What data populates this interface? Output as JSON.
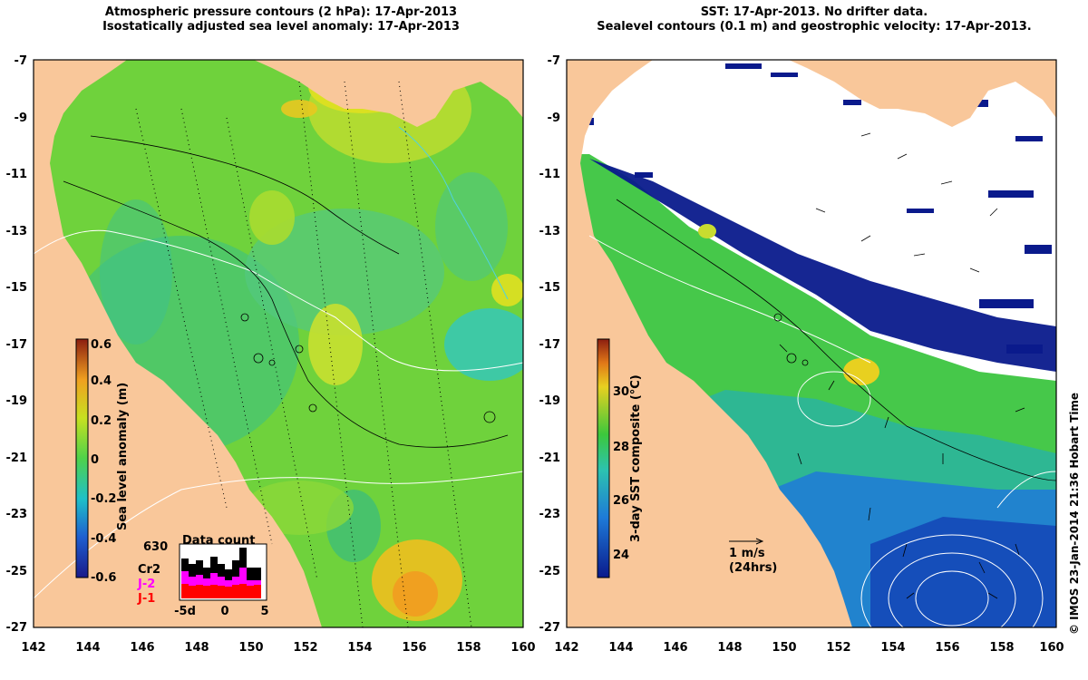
{
  "left_panel": {
    "title_line1": "Atmospheric pressure contours (2 hPa): 17-Apr-2013",
    "title_line2": "Isostatically adjusted sea level anomaly: 17-Apr-2013",
    "colorbar_label": "Sea level anomaly (m)",
    "colorbar_ticks": [
      "0.6",
      "0.4",
      "0.2",
      "0",
      "-0.2",
      "-0.4",
      "-0.6"
    ],
    "data_count": {
      "title": "Data count",
      "max_label": "630",
      "satellites": [
        {
          "label": "Cr2",
          "color": "#000000"
        },
        {
          "label": "J-2",
          "color": "#ff00ff"
        },
        {
          "label": "J-1",
          "color": "#ff0000"
        }
      ],
      "xticks": [
        "-5d",
        "0",
        "5"
      ]
    }
  },
  "right_panel": {
    "title_line1": "SST: 17-Apr-2013. No drifter data.",
    "title_line2": "Sealevel contours (0.1 m) and geostrophic velocity: 17-Apr-2013.",
    "colorbar_label": "3-day SST composite (°C)",
    "colorbar_ticks": [
      "30",
      "28",
      "26",
      "24"
    ],
    "velocity_scale": {
      "speed": "1 m/s",
      "period": "(24hrs)"
    }
  },
  "axes": {
    "x_ticks": [
      "142",
      "144",
      "146",
      "148",
      "150",
      "152",
      "154",
      "156",
      "158",
      "160"
    ],
    "y_ticks": [
      "-7",
      "-9",
      "-11",
      "-13",
      "-15",
      "-17",
      "-19",
      "-21",
      "-23",
      "-25",
      "-27"
    ],
    "lon_range": [
      142,
      160
    ],
    "lat_range": [
      -27,
      -7
    ]
  },
  "colors": {
    "land": "#f9c79a",
    "ocean_green": "#6fd23c",
    "sst_deep_blue": "#0a1a8c",
    "slope_text_white": "#ffffff"
  },
  "credit": "© IMOS 23-Jan-2014 21:36 Hobart Time"
}
